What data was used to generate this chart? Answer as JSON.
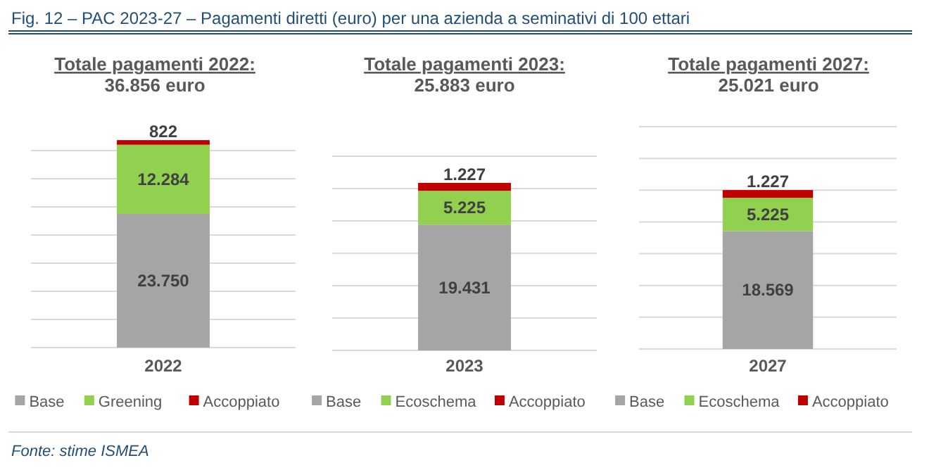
{
  "chart_data": [
    {
      "type": "bar",
      "stacked": true,
      "title": "Totale pagamenti 2022:",
      "subtitle": "36.856 euro",
      "categories": [
        "2022"
      ],
      "ylim": [
        0,
        37000
      ],
      "yticks": [
        {
          "value": 0,
          "label": null
        },
        {
          "value": 5000,
          "label": null
        },
        {
          "value": 10000,
          "label": null
        },
        {
          "value": 15000,
          "label": null
        },
        {
          "value": 20000,
          "label": null
        },
        {
          "value": 25000,
          "label": null
        },
        {
          "value": 30000,
          "label": null
        },
        {
          "value": 35000,
          "label": null
        }
      ],
      "tick_labels": "x",
      "grid": "y",
      "legend": "bottom",
      "annotations": [
        "Fig. 12 – PAC 2023-27 – Pagamenti diretti (euro) per una azienda a seminativi di 100 ettari",
        "Fonte: stime ISMEA"
      ],
      "series": [
        {
          "name": "Base",
          "color": "#a5a5a5",
          "values": [
            23750
          ],
          "value_labels": [
            "23.750"
          ]
        },
        {
          "name": "Greening",
          "color": "#92d050",
          "values": [
            12284
          ],
          "value_labels": [
            "12.284"
          ]
        },
        {
          "name": "Accoppiato",
          "color": "#c00000",
          "values": [
            822
          ],
          "value_labels": [
            "822"
          ]
        }
      ]
    },
    {
      "type": "bar",
      "stacked": true,
      "title": "Totale pagamenti 2023:",
      "subtitle": "25.883 euro",
      "categories": [
        "2023"
      ],
      "ylim": [
        0,
        30000
      ],
      "yticks": [
        {
          "value": 0,
          "label": null
        },
        {
          "value": 5000,
          "label": null
        },
        {
          "value": 10000,
          "label": null
        },
        {
          "value": 15000,
          "label": null
        },
        {
          "value": 20000,
          "label": null
        },
        {
          "value": 25000,
          "label": null
        },
        {
          "value": 30000,
          "label": null
        }
      ],
      "tick_labels": "x",
      "grid": "y",
      "legend": "bottom",
      "series": [
        {
          "name": "Base",
          "color": "#a5a5a5",
          "values": [
            19431
          ],
          "value_labels": [
            "19.431"
          ]
        },
        {
          "name": "Ecoschema",
          "color": "#92d050",
          "values": [
            5225
          ],
          "value_labels": [
            "5.225"
          ]
        },
        {
          "name": "Accoppiato",
          "color": "#c00000",
          "values": [
            1227
          ],
          "value_labels": [
            "1.227"
          ]
        }
      ]
    },
    {
      "type": "bar",
      "stacked": true,
      "title": "Totale pagamenti 2027:",
      "subtitle": "25.021 euro",
      "categories": [
        "2027"
      ],
      "ylim": [
        0,
        35000
      ],
      "yticks": [
        {
          "value": 0,
          "label": null
        },
        {
          "value": 5000,
          "label": null
        },
        {
          "value": 10000,
          "label": null
        },
        {
          "value": 15000,
          "label": null
        },
        {
          "value": 20000,
          "label": null
        },
        {
          "value": 25000,
          "label": null
        },
        {
          "value": 30000,
          "label": null
        },
        {
          "value": 35000,
          "label": null
        }
      ],
      "tick_labels": "x",
      "grid": "y",
      "legend": "bottom",
      "series": [
        {
          "name": "Base",
          "color": "#a5a5a5",
          "values": [
            18569
          ],
          "value_labels": [
            "18.569"
          ]
        },
        {
          "name": "Ecoschema",
          "color": "#92d050",
          "values": [
            5225
          ],
          "value_labels": [
            "5.225"
          ]
        },
        {
          "name": "Accoppiato",
          "color": "#c00000",
          "values": [
            1227
          ],
          "value_labels": [
            "1.227"
          ]
        }
      ]
    }
  ]
}
